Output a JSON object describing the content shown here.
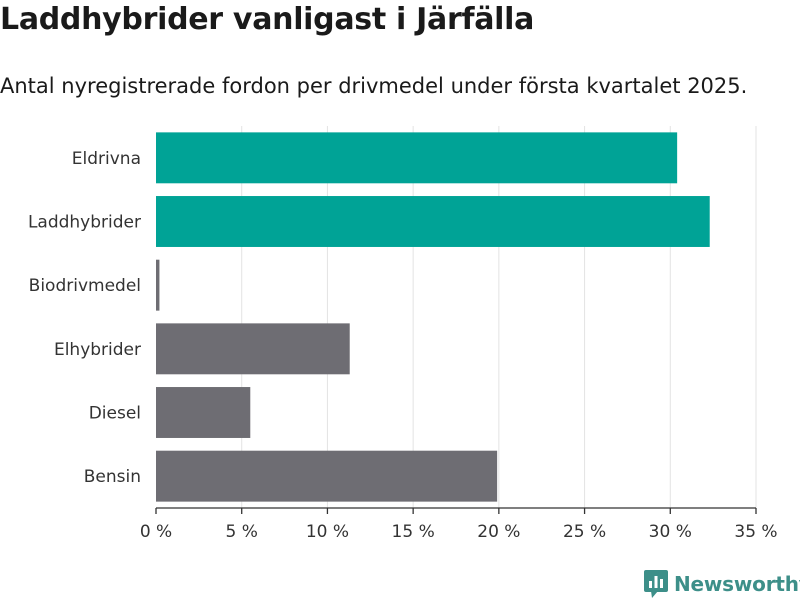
{
  "title": "Laddhybrider vanligast i Järfälla",
  "subtitle": "Antal nyregistrerade fordon per drivmedel under första kvartalet 2025.",
  "brand": {
    "name": "Newsworthy",
    "color": "#3d8f89",
    "icon": "bar-chart-speech-bubble-icon"
  },
  "colors": {
    "highlight": "#00a396",
    "default": "#6e6d73",
    "grid": "#e3e3e3",
    "axis": "#333333"
  },
  "chart_data": {
    "type": "bar",
    "orientation": "horizontal",
    "categories": [
      "Eldrivna",
      "Laddhybrider",
      "Biodrivmedel",
      "Elhybrider",
      "Diesel",
      "Bensin"
    ],
    "values": [
      30.4,
      32.3,
      0.2,
      11.3,
      5.5,
      19.9
    ],
    "highlighted": [
      true,
      true,
      false,
      false,
      false,
      false
    ],
    "xlim": [
      0,
      35
    ],
    "xticks": [
      0,
      5,
      10,
      15,
      20,
      25,
      30,
      35
    ],
    "xtick_labels": [
      "0 %",
      "5 %",
      "10 %",
      "15 %",
      "20 %",
      "25 %",
      "30 %",
      "35 %"
    ],
    "grid": true,
    "xlabel": "",
    "ylabel": ""
  }
}
